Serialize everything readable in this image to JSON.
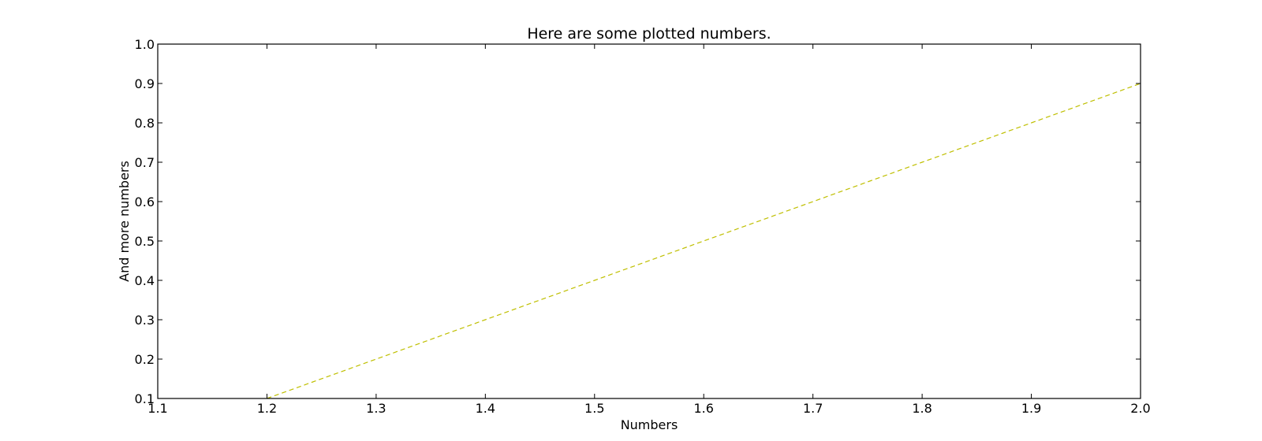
{
  "chart_data": {
    "type": "line",
    "title": "Here are some plotted numbers.",
    "xlabel": "Numbers",
    "ylabel": "And more numbers",
    "xlim": [
      1.1,
      2.0
    ],
    "ylim": [
      0.1,
      1.0
    ],
    "xticks": [
      "1.1",
      "1.2",
      "1.3",
      "1.4",
      "1.5",
      "1.6",
      "1.7",
      "1.8",
      "1.9",
      "2.0"
    ],
    "yticks": [
      "0.1",
      "0.2",
      "0.3",
      "0.4",
      "0.5",
      "0.6",
      "0.7",
      "0.8",
      "0.9",
      "1.0"
    ],
    "grid": false,
    "legend": "none",
    "series": [
      {
        "color": "#bfbf00",
        "line_style": "dashed",
        "x": [
          1.2,
          1.3,
          1.4,
          1.5,
          1.6,
          1.7,
          1.8,
          1.9,
          2.0
        ],
        "y": [
          0.1,
          0.2,
          0.3,
          0.4,
          0.5,
          0.6,
          0.7,
          0.8,
          0.9
        ]
      }
    ]
  }
}
